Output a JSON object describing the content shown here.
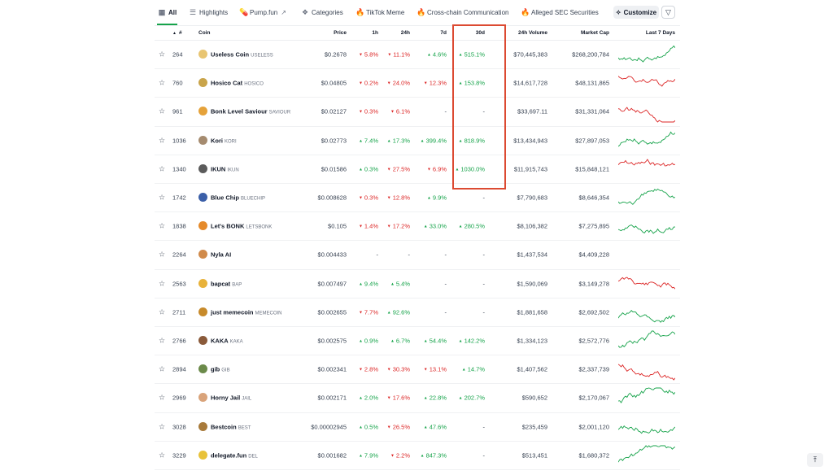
{
  "tabs": [
    {
      "label": "All",
      "icon": "grid-icon",
      "active": true
    },
    {
      "label": "Highlights",
      "icon": "list-icon"
    },
    {
      "label": "Pump.fun",
      "icon": "pill-icon",
      "external": true
    },
    {
      "label": "Categories",
      "icon": "shapes-icon"
    },
    {
      "label": "TikTok Meme",
      "icon": "fire-icon"
    },
    {
      "label": "Cross-chain Communication",
      "icon": "fire-icon"
    },
    {
      "label": "Alleged SEC Securities",
      "icon": "fire-icon"
    }
  ],
  "customize_label": "Customize",
  "headers": {
    "rank": "#",
    "coin": "Coin",
    "price": "Price",
    "h1": "1h",
    "h24": "24h",
    "d7": "7d",
    "d30": "30d",
    "volume": "24h Volume",
    "mcap": "Market Cap",
    "last7": "Last 7 Days"
  },
  "colors": {
    "up": "#16a34a",
    "down": "#dc2626",
    "highlight": "#dc4a32"
  },
  "rows": [
    {
      "rank": "264",
      "name": "Useless Coin",
      "symbol": "USELESS",
      "price": "$0.2678",
      "h1": "5.8%",
      "h1_dir": "down",
      "h24": "11.1%",
      "h24_dir": "down",
      "d7": "4.6%",
      "d7_dir": "up",
      "d30": "515.1%",
      "d30_dir": "up",
      "volume": "$70,445,383",
      "mcap": "$268,200,784",
      "spark": "up",
      "icon_color": "#e8c572"
    },
    {
      "rank": "760",
      "name": "Hosico Cat",
      "symbol": "HOSICO",
      "price": "$0.04805",
      "h1": "0.2%",
      "h1_dir": "down",
      "h24": "24.0%",
      "h24_dir": "down",
      "d7": "12.3%",
      "d7_dir": "down",
      "d30": "153.8%",
      "d30_dir": "up",
      "volume": "$14,617,728",
      "mcap": "$48,131,865",
      "spark": "down",
      "icon_color": "#c9a44a"
    },
    {
      "rank": "961",
      "name": "Bonk Level Saviour",
      "symbol": "SAVIOUR",
      "price": "$0.02127",
      "h1": "0.3%",
      "h1_dir": "down",
      "h24": "6.1%",
      "h24_dir": "down",
      "d7": "-",
      "d7_dir": "none",
      "d30": "-",
      "d30_dir": "none",
      "volume": "$33,697.11",
      "mcap": "$31,331,064",
      "spark": "down",
      "icon_color": "#e5a23a"
    },
    {
      "rank": "1036",
      "name": "Kori",
      "symbol": "KORI",
      "price": "$0.02773",
      "h1": "7.4%",
      "h1_dir": "up",
      "h24": "17.3%",
      "h24_dir": "up",
      "d7": "399.4%",
      "d7_dir": "up",
      "d30": "818.9%",
      "d30_dir": "up",
      "volume": "$13,434,943",
      "mcap": "$27,897,053",
      "spark": "up",
      "icon_color": "#a58b6f"
    },
    {
      "rank": "1340",
      "name": "IKUN",
      "symbol": "IKUN",
      "price": "$0.01586",
      "h1": "0.3%",
      "h1_dir": "up",
      "h24": "27.5%",
      "h24_dir": "down",
      "d7": "6.9%",
      "d7_dir": "down",
      "d30": "1030.0%",
      "d30_dir": "up",
      "volume": "$11,915,743",
      "mcap": "$15,848,121",
      "spark": "down",
      "icon_color": "#5b5b5b"
    },
    {
      "rank": "1742",
      "name": "Blue Chip",
      "symbol": "BLUECHIP",
      "price": "$0.008628",
      "h1": "0.3%",
      "h1_dir": "down",
      "h24": "12.8%",
      "h24_dir": "down",
      "d7": "9.9%",
      "d7_dir": "up",
      "d30": "-",
      "d30_dir": "none",
      "volume": "$7,790,683",
      "mcap": "$8,646,354",
      "spark": "up",
      "icon_color": "#3b5fa8"
    },
    {
      "rank": "1838",
      "name": "Let's BONK",
      "symbol": "LETSBONK",
      "price": "$0.105",
      "h1": "1.4%",
      "h1_dir": "down",
      "h24": "17.2%",
      "h24_dir": "down",
      "d7": "33.0%",
      "d7_dir": "up",
      "d30": "280.5%",
      "d30_dir": "up",
      "volume": "$8,106,382",
      "mcap": "$7,275,895",
      "spark": "up",
      "icon_color": "#e58a2a"
    },
    {
      "rank": "2264",
      "name": "Nyla AI",
      "symbol": "",
      "price": "$0.004433",
      "h1": "-",
      "h1_dir": "none",
      "h24": "-",
      "h24_dir": "none",
      "d7": "-",
      "d7_dir": "none",
      "d30": "-",
      "d30_dir": "none",
      "volume": "$1,437,534",
      "mcap": "$4,409,228",
      "spark": "none",
      "icon_color": "#d08a4a"
    },
    {
      "rank": "2563",
      "name": "bapcat",
      "symbol": "BAP",
      "price": "$0.007497",
      "h1": "9.4%",
      "h1_dir": "up",
      "h24": "5.4%",
      "h24_dir": "up",
      "d7": "-",
      "d7_dir": "none",
      "d30": "-",
      "d30_dir": "none",
      "volume": "$1,590,069",
      "mcap": "$3,149,278",
      "spark": "down",
      "icon_color": "#e8b23a"
    },
    {
      "rank": "2711",
      "name": "just memecoin",
      "symbol": "MEMECOIN",
      "price": "$0.002655",
      "h1": "7.7%",
      "h1_dir": "down",
      "h24": "92.6%",
      "h24_dir": "up",
      "d7": "-",
      "d7_dir": "none",
      "d30": "-",
      "d30_dir": "none",
      "volume": "$1,881,658",
      "mcap": "$2,692,502",
      "spark": "up",
      "icon_color": "#c78a2a"
    },
    {
      "rank": "2766",
      "name": "KAKA",
      "symbol": "KAKA",
      "price": "$0.002575",
      "h1": "0.9%",
      "h1_dir": "up",
      "h24": "6.7%",
      "h24_dir": "up",
      "d7": "54.4%",
      "d7_dir": "up",
      "d30": "142.2%",
      "d30_dir": "up",
      "volume": "$1,334,123",
      "mcap": "$2,572,776",
      "spark": "up",
      "icon_color": "#8a5a3a"
    },
    {
      "rank": "2894",
      "name": "gib",
      "symbol": "GIB",
      "price": "$0.002341",
      "h1": "2.8%",
      "h1_dir": "down",
      "h24": "30.3%",
      "h24_dir": "down",
      "d7": "13.1%",
      "d7_dir": "down",
      "d30": "14.7%",
      "d30_dir": "up",
      "volume": "$1,407,562",
      "mcap": "$2,337,739",
      "spark": "down",
      "icon_color": "#6b8a4a"
    },
    {
      "rank": "2969",
      "name": "Horny Jail",
      "symbol": "JAIL",
      "price": "$0.002171",
      "h1": "2.0%",
      "h1_dir": "up",
      "h24": "17.6%",
      "h24_dir": "down",
      "d7": "22.8%",
      "d7_dir": "up",
      "d30": "202.7%",
      "d30_dir": "up",
      "volume": "$590,652",
      "mcap": "$2,170,067",
      "spark": "up",
      "icon_color": "#d9a37a"
    },
    {
      "rank": "3028",
      "name": "Bestcoin",
      "symbol": "BEST",
      "price": "$0.00002945",
      "h1": "0.5%",
      "h1_dir": "up",
      "h24": "26.5%",
      "h24_dir": "down",
      "d7": "47.6%",
      "d7_dir": "up",
      "d30": "-",
      "d30_dir": "none",
      "volume": "$235,459",
      "mcap": "$2,001,120",
      "spark": "up",
      "icon_color": "#a87a3a"
    },
    {
      "rank": "3229",
      "name": "delegate.fun",
      "symbol": "DEL",
      "price": "$0.001682",
      "h1": "7.9%",
      "h1_dir": "up",
      "h24": "2.2%",
      "h24_dir": "down",
      "d7": "847.3%",
      "d7_dir": "up",
      "d30": "-",
      "d30_dir": "none",
      "volume": "$513,451",
      "mcap": "$1,680,372",
      "spark": "up",
      "icon_color": "#e8c23a"
    }
  ]
}
